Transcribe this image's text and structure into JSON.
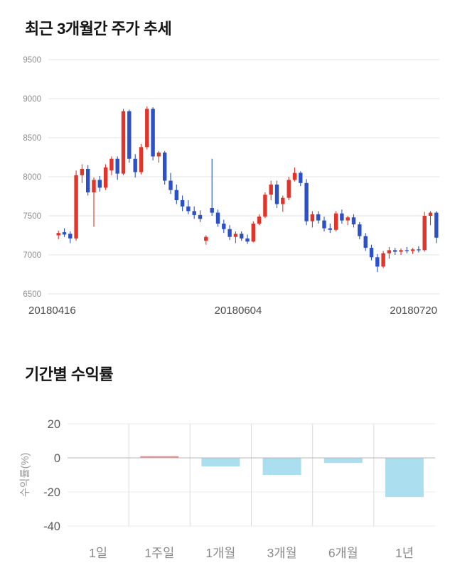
{
  "sections": {
    "price_trend": {
      "title": "최근 3개월간 주가 추세"
    },
    "returns": {
      "title": "기간별 수익률"
    }
  },
  "chart_data": [
    {
      "type": "candlestick",
      "title": "최근 3개월간 주가 추세",
      "ylim": [
        6500,
        9500
      ],
      "yticks": [
        9500,
        9000,
        8500,
        8000,
        7500,
        7000,
        6500
      ],
      "xtick_labels": [
        "20180416",
        "20180604",
        "20180720"
      ],
      "up_color": "#e0352b",
      "down_color": "#2b50c8",
      "grid_color": "#e6e6e6",
      "candles_format": [
        "open",
        "high",
        "low",
        "close"
      ],
      "candles": [
        [
          7250,
          7310,
          7200,
          7280
        ],
        [
          7290,
          7340,
          7230,
          7260
        ],
        [
          7270,
          7300,
          7150,
          7210
        ],
        [
          7210,
          8080,
          7180,
          8020
        ],
        [
          8020,
          8160,
          7920,
          8100
        ],
        [
          8100,
          8150,
          7760,
          7800
        ],
        [
          7800,
          7990,
          7360,
          7960
        ],
        [
          7960,
          8010,
          7810,
          7860
        ],
        [
          7860,
          8160,
          7830,
          8120
        ],
        [
          8080,
          8260,
          8020,
          8230
        ],
        [
          8230,
          8260,
          7960,
          8040
        ],
        [
          8040,
          8870,
          8020,
          8840
        ],
        [
          8840,
          8860,
          8180,
          8230
        ],
        [
          8230,
          8290,
          7990,
          8060
        ],
        [
          8060,
          8420,
          8030,
          8380
        ],
        [
          8380,
          8900,
          8350,
          8870
        ],
        [
          8870,
          8890,
          8210,
          8260
        ],
        [
          8260,
          8330,
          8180,
          8310
        ],
        [
          8310,
          8330,
          7900,
          7950
        ],
        [
          7950,
          8050,
          7780,
          7830
        ],
        [
          7830,
          7900,
          7650,
          7700
        ],
        [
          7700,
          7760,
          7560,
          7620
        ],
        [
          7620,
          7700,
          7520,
          7560
        ],
        [
          7560,
          7620,
          7460,
          7510
        ],
        [
          7510,
          7570,
          7420,
          7460
        ],
        [
          7180,
          7250,
          7130,
          7230
        ],
        [
          7600,
          8230,
          7500,
          7540
        ],
        [
          7540,
          7580,
          7360,
          7400
        ],
        [
          7400,
          7450,
          7280,
          7330
        ],
        [
          7330,
          7380,
          7190,
          7230
        ],
        [
          7230,
          7300,
          7150,
          7270
        ],
        [
          7270,
          7300,
          7180,
          7210
        ],
        [
          7210,
          7260,
          7140,
          7170
        ],
        [
          7170,
          7430,
          7160,
          7400
        ],
        [
          7400,
          7520,
          7380,
          7490
        ],
        [
          7490,
          7800,
          7470,
          7770
        ],
        [
          7770,
          7950,
          7700,
          7900
        ],
        [
          7900,
          7950,
          7600,
          7650
        ],
        [
          7650,
          7760,
          7550,
          7730
        ],
        [
          7730,
          8000,
          7700,
          7960
        ],
        [
          7960,
          8120,
          7940,
          8050
        ],
        [
          8050,
          8070,
          7880,
          7920
        ],
        [
          7920,
          7970,
          7380,
          7430
        ],
        [
          7430,
          7560,
          7350,
          7520
        ],
        [
          7520,
          7560,
          7400,
          7440
        ],
        [
          7440,
          7490,
          7300,
          7340
        ],
        [
          7340,
          7400,
          7280,
          7320
        ],
        [
          7320,
          7560,
          7300,
          7530
        ],
        [
          7530,
          7580,
          7400,
          7440
        ],
        [
          7440,
          7500,
          7380,
          7480
        ],
        [
          7480,
          7520,
          7350,
          7390
        ],
        [
          7390,
          7420,
          7200,
          7240
        ],
        [
          7240,
          7280,
          7050,
          7090
        ],
        [
          7090,
          7130,
          6930,
          6970
        ],
        [
          6970,
          7010,
          6780,
          6850
        ],
        [
          6850,
          7050,
          6830,
          7020
        ],
        [
          7020,
          7100,
          6950,
          7060
        ],
        [
          7060,
          7090,
          7000,
          7040
        ],
        [
          7040,
          7080,
          7000,
          7060
        ],
        [
          7060,
          7100,
          7020,
          7050
        ],
        [
          7050,
          7090,
          7010,
          7070
        ],
        [
          7070,
          7110,
          7030,
          7060
        ],
        [
          7060,
          7550,
          7040,
          7500
        ],
        [
          7500,
          7560,
          7380,
          7540
        ],
        [
          7540,
          7560,
          7150,
          7220
        ]
      ]
    },
    {
      "type": "bar",
      "title": "기간별 수익률",
      "ylabel": "수익률(%)",
      "categories": [
        "1일",
        "1주일",
        "1개월",
        "3개월",
        "6개월",
        "1년"
      ],
      "values": [
        0,
        1,
        -5,
        -10,
        -3,
        -23
      ],
      "ylim": [
        -40,
        20
      ],
      "yticks": [
        20,
        0,
        -20,
        -40
      ],
      "positive_color": "#f08a8a",
      "negative_color": "#abdff0",
      "grid_on": true,
      "legend": "none"
    }
  ]
}
